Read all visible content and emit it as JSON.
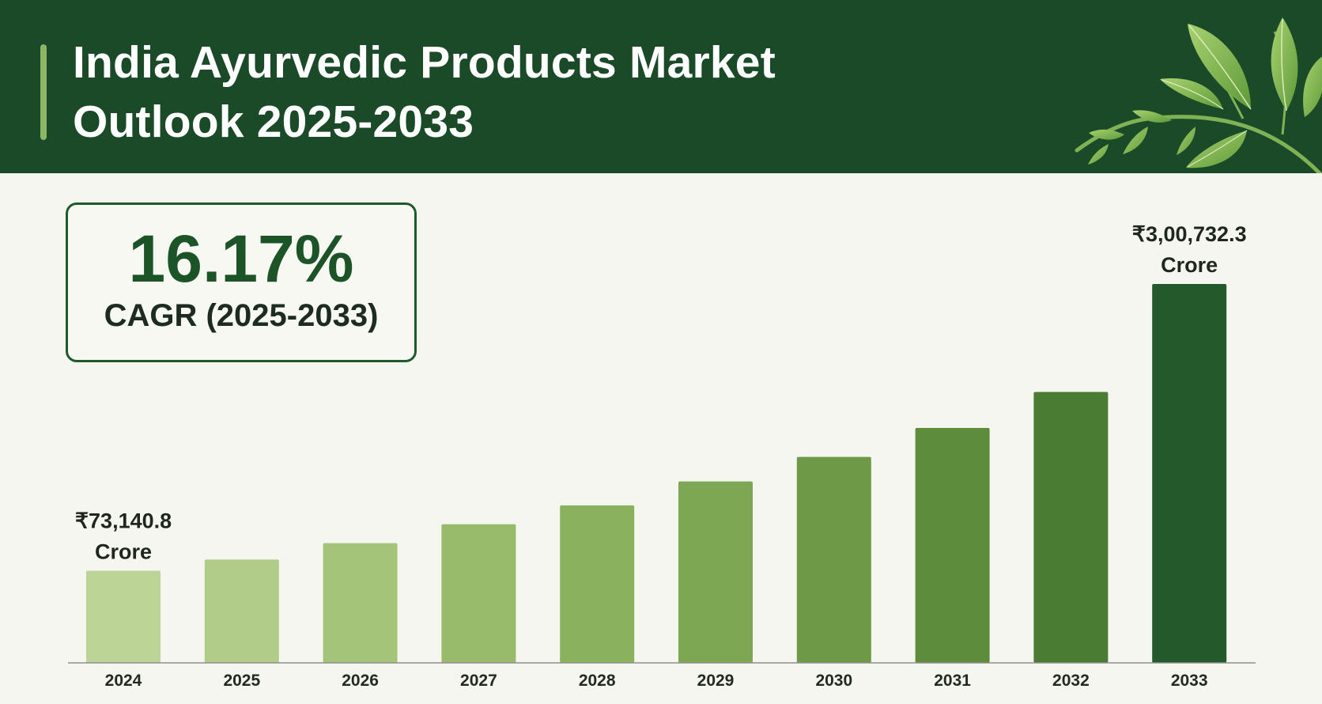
{
  "header": {
    "title_line1": "India Ayurvedic Products Market",
    "title_line2": "Outlook 2025-2033"
  },
  "cagr": {
    "value": "16.17%",
    "label": "CAGR (2025-2033)"
  },
  "colors": {
    "header_bg": "#1a4a27",
    "accent": "#8db664",
    "bars": [
      "#bcd496",
      "#b0cc88",
      "#a4c47a",
      "#97bb6b",
      "#8ab15e",
      "#7ea754",
      "#6e9a47",
      "#5e8c3d",
      "#4b7c34",
      "#245a2b"
    ]
  },
  "chart_data": {
    "type": "bar",
    "categories": [
      "2024",
      "2025",
      "2026",
      "2027",
      "2028",
      "2029",
      "2030",
      "2031",
      "2032",
      "2033"
    ],
    "values": [
      73140.8,
      82000,
      95000,
      110000,
      125000,
      144000,
      163500,
      186500,
      215000,
      300732.3
    ],
    "unit": "Crore",
    "data_labels": [
      {
        "index": 0,
        "line1": "₹73,140.8",
        "line2": "Crore"
      },
      {
        "index": 9,
        "line1": "₹3,00,732.3",
        "line2": "Crore"
      }
    ],
    "title": "India Ayurvedic Products Market Outlook 2025-2033",
    "xlabel": "",
    "ylabel": "",
    "grid": false,
    "y_axis_visible": false
  }
}
